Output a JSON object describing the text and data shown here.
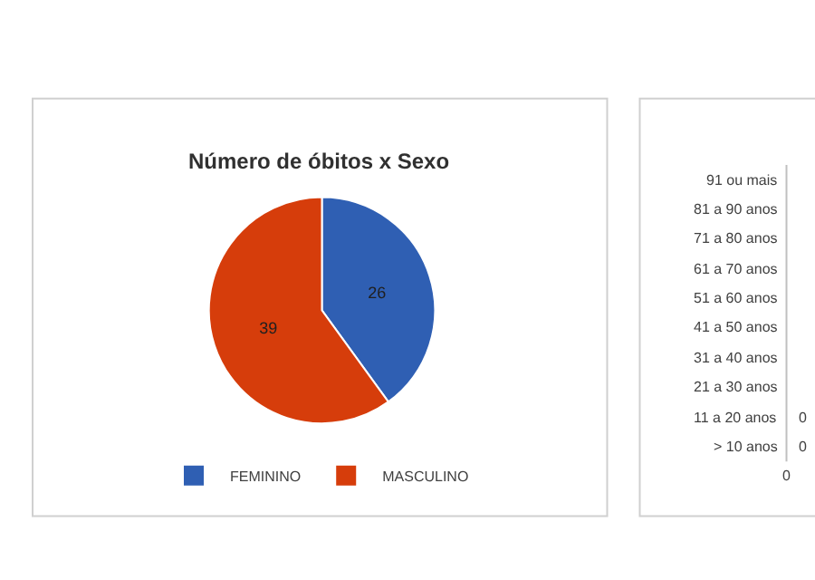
{
  "chart_data": [
    {
      "type": "pie",
      "title": "Número de óbitos x Sexo",
      "categories": [
        "FEMININO",
        "MASCULINO"
      ],
      "values": [
        26,
        39
      ],
      "colors": [
        "#2f5fb3",
        "#d63d0b"
      ],
      "data_labels": true,
      "legend": "bottom"
    },
    {
      "type": "other",
      "categories": [
        "91 ou mais",
        "81 a 90 anos",
        "71 a 80 anos",
        "61 a 70 anos",
        "51 a 60 anos",
        "41 a 50 anos",
        "31 a 40 anos",
        "21 a 30 anos",
        "11 a 20 anos",
        "> 10 anos"
      ],
      "value_labels": [
        null,
        null,
        null,
        null,
        null,
        null,
        null,
        null,
        "0",
        "0"
      ],
      "annotations": [
        "0"
      ]
    }
  ]
}
